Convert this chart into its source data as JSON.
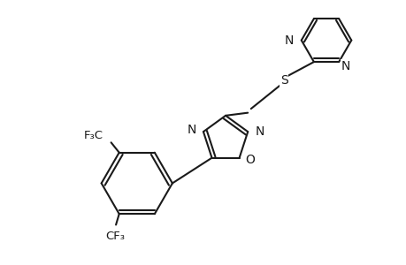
{
  "bg_color": "#ffffff",
  "line_color": "#1a1a1a",
  "line_width": 1.5,
  "font_size": 10,
  "fig_width": 4.6,
  "fig_height": 3.0,
  "dpi": 100,
  "xlim": [
    0,
    10
  ],
  "ylim": [
    0,
    6.52
  ]
}
